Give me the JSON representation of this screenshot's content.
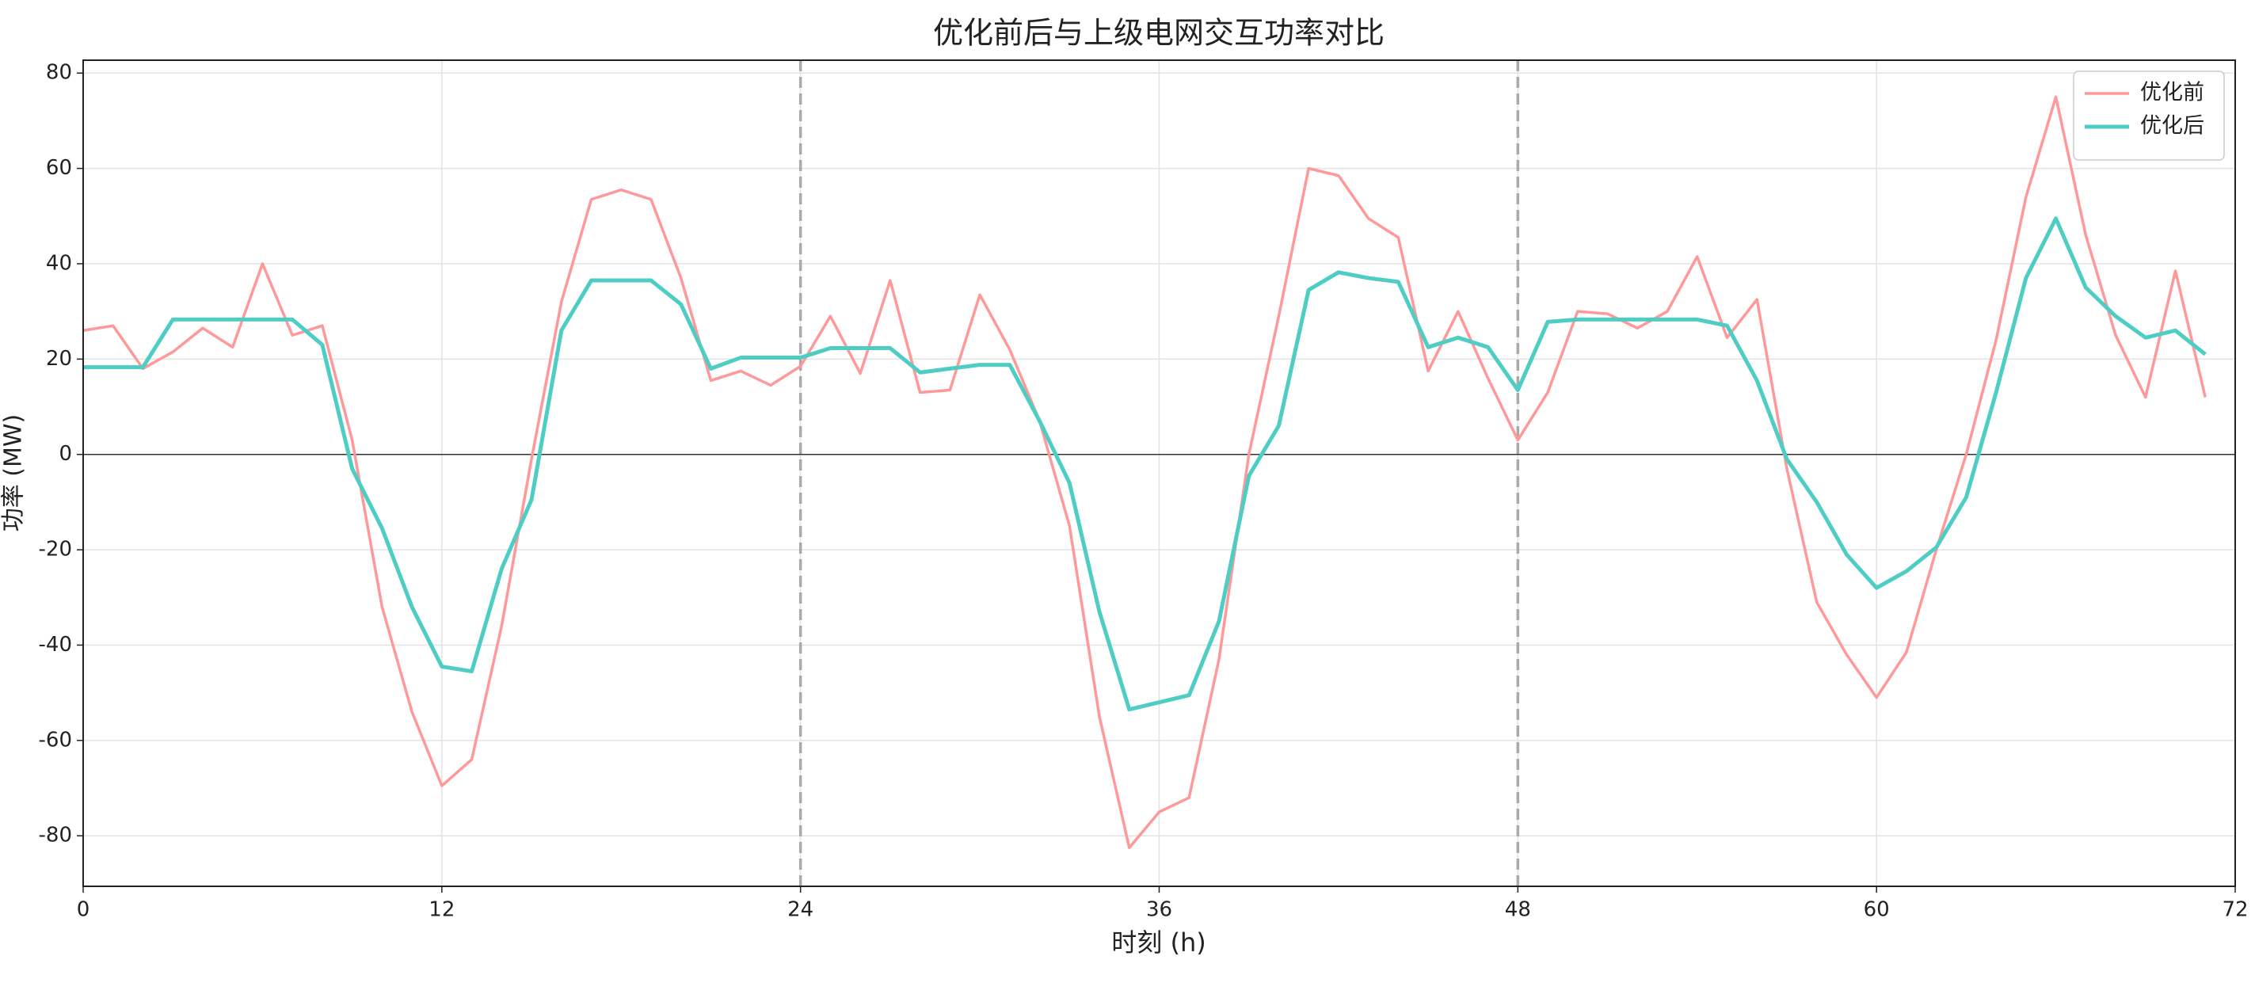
{
  "chart_data": {
    "type": "line",
    "title": "优化前后与上级电网交互功率对比",
    "xlabel": "时刻 (h)",
    "ylabel": "功率 (MW)",
    "x": [
      0,
      1,
      2,
      3,
      4,
      5,
      6,
      7,
      8,
      9,
      10,
      11,
      12,
      13,
      14,
      15,
      16,
      17,
      18,
      19,
      20,
      21,
      22,
      23,
      24,
      25,
      26,
      27,
      28,
      29,
      30,
      31,
      32,
      33,
      34,
      35,
      36,
      37,
      38,
      39,
      40,
      41,
      42,
      43,
      44,
      45,
      46,
      47,
      48,
      49,
      50,
      51,
      52,
      53,
      54,
      55,
      56,
      57,
      58,
      59,
      60,
      61,
      62,
      63,
      64,
      65,
      66,
      67,
      68,
      69,
      70,
      71
    ],
    "series": [
      {
        "name": "优化前",
        "color": "#ff9999",
        "width": 3.5,
        "values": [
          26,
          27,
          18,
          21.5,
          26.5,
          22.5,
          40,
          25,
          27,
          3,
          -32,
          -54,
          -69.5,
          -64,
          -36,
          -1,
          32,
          53.5,
          55.5,
          53.5,
          37,
          15.5,
          17.5,
          14.5,
          18.5,
          29,
          17,
          36.5,
          13,
          13.5,
          33.5,
          22,
          7,
          -15,
          -55,
          -82.5,
          -75,
          -72,
          -43,
          0,
          29,
          60,
          58.5,
          49.5,
          45.5,
          17.5,
          30,
          16,
          3,
          13,
          30,
          29.5,
          26.5,
          30,
          41.5,
          24.5,
          32.5,
          -3,
          -31,
          -42,
          -51,
          -41.5,
          -20,
          0,
          24,
          54,
          75,
          46,
          25,
          12,
          38.5,
          12
        ]
      },
      {
        "name": "优化后",
        "color": "#4ecdc4",
        "width": 5,
        "values": [
          18.3,
          18.3,
          18.3,
          28.3,
          28.3,
          28.3,
          28.3,
          28.3,
          23,
          -3,
          -15.5,
          -32,
          -44.5,
          -45.5,
          -24,
          -9.5,
          26,
          36.5,
          36.5,
          36.5,
          31.5,
          18,
          20.3,
          20.3,
          20.3,
          22.3,
          22.3,
          22.3,
          17.2,
          18,
          18.8,
          18.8,
          7,
          -6,
          -33,
          -53.5,
          -52,
          -50.5,
          -35,
          -4.5,
          6,
          34.5,
          38.2,
          37,
          36.2,
          22.5,
          24.5,
          22.5,
          13.5,
          27.8,
          28.3,
          28.3,
          28.3,
          28.3,
          28.3,
          27,
          15.5,
          -1,
          -10,
          -21,
          -28,
          -24.5,
          -19.5,
          -9,
          13,
          37,
          49.5,
          35,
          29,
          24.5,
          26,
          21
        ]
      }
    ],
    "xlim": [
      0,
      72
    ],
    "xticks": [
      0,
      12,
      24,
      36,
      48,
      60,
      72
    ],
    "ylim": [
      -90.6,
      82.7
    ],
    "yticks": [
      -80,
      -60,
      -40,
      -20,
      0,
      20,
      40,
      60,
      80
    ],
    "vlines": [
      24,
      48
    ],
    "hlines": [
      0
    ],
    "grid": true,
    "legend": "upper right"
  }
}
